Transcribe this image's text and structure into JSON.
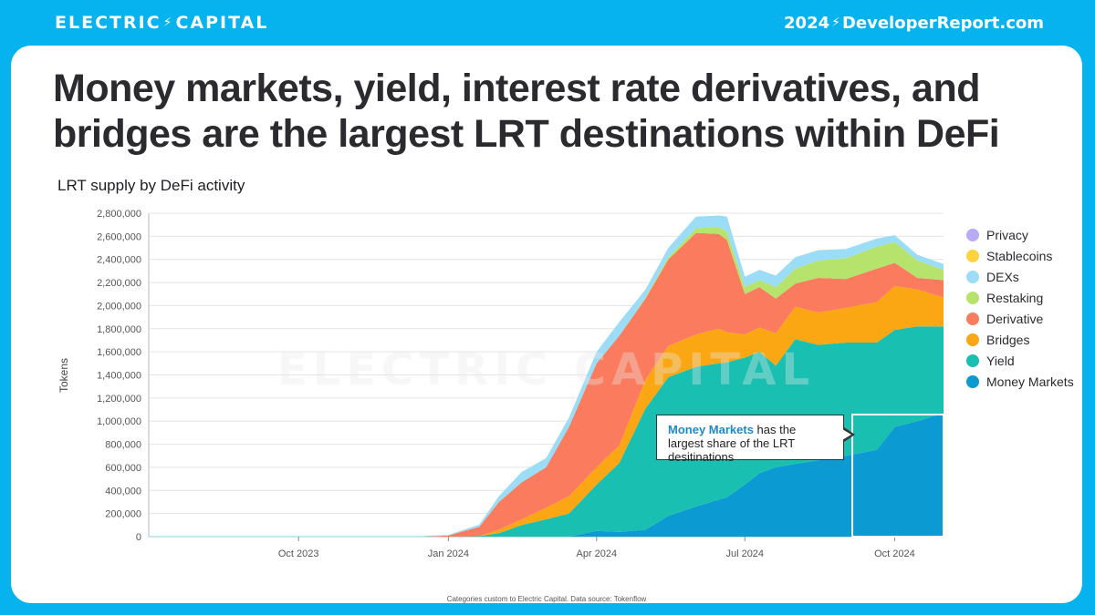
{
  "header": {
    "brand": "ELECTRIC CAPITAL",
    "brand_left": "ELECTRIC",
    "brand_right": "CAPITAL",
    "site_year": "2024",
    "site_url": "DeveloperReport.com"
  },
  "card": {
    "title": "Money markets, yield, interest rate derivatives, and bridges are the largest LRT destinations within DeFi",
    "subtitle": "LRT supply by DeFi activity",
    "source": "Categories custom to Electric Capital. Data source: Tokenflow",
    "callout_highlight": "Money Markets",
    "callout_text": " has the largest share of the LRT desitinations"
  },
  "chart_data": {
    "type": "area",
    "stacked": true,
    "ylabel": "Tokens",
    "xlabel": "",
    "ylim": [
      0,
      2800000
    ],
    "yticks": [
      0,
      200000,
      400000,
      600000,
      800000,
      1000000,
      1200000,
      1400000,
      1600000,
      1800000,
      2000000,
      2200000,
      2400000,
      2600000,
      2800000
    ],
    "ytick_labels": [
      "0",
      "200,000",
      "400,000",
      "600,000",
      "800,000",
      "1,000,000",
      "1,200,000",
      "1,400,000",
      "1,600,000",
      "1,800,000",
      "2,000,000",
      "2,200,000",
      "2,400,000",
      "2,600,000",
      "2,800,000"
    ],
    "xlim": [
      "2023-07-01",
      "2024-10-31"
    ],
    "xticks": [
      "2023-10-01",
      "2024-01-01",
      "2024-04-01",
      "2024-07-01",
      "2024-10-01"
    ],
    "xtick_labels": [
      "Oct 2023",
      "Jan 2024",
      "Apr 2024",
      "Jul 2024",
      "Oct 2024"
    ],
    "grid": true,
    "legend_position": "right",
    "watermark": "ELECTRIC CAPITAL",
    "x": [
      "2023-07-01",
      "2023-12-15",
      "2024-01-01",
      "2024-01-20",
      "2024-02-01",
      "2024-02-15",
      "2024-03-01",
      "2024-03-15",
      "2024-04-01",
      "2024-04-15",
      "2024-05-01",
      "2024-05-15",
      "2024-06-01",
      "2024-06-15",
      "2024-06-20",
      "2024-07-01",
      "2024-07-10",
      "2024-07-20",
      "2024-08-01",
      "2024-08-15",
      "2024-09-01",
      "2024-09-20",
      "2024-10-01",
      "2024-10-15",
      "2024-10-31"
    ],
    "series": [
      {
        "name": "Money Markets",
        "color": "#0b9ad1",
        "values": [
          0,
          0,
          0,
          0,
          0,
          0,
          0,
          0,
          50000,
          40000,
          60000,
          180000,
          260000,
          320000,
          340000,
          450000,
          550000,
          600000,
          630000,
          660000,
          700000,
          750000,
          950000,
          1000000,
          1070000
        ]
      },
      {
        "name": "Yield",
        "color": "#19bfb0",
        "values": [
          0,
          0,
          0,
          5000,
          30000,
          100000,
          150000,
          200000,
          400000,
          600000,
          1050000,
          1200000,
          1210000,
          1180000,
          1170000,
          1100000,
          1050000,
          880000,
          1080000,
          1000000,
          980000,
          930000,
          840000,
          820000,
          750000
        ]
      },
      {
        "name": "Bridges",
        "color": "#fba714",
        "values": [
          0,
          0,
          0,
          0,
          30000,
          50000,
          100000,
          150000,
          150000,
          150000,
          250000,
          270000,
          280000,
          300000,
          260000,
          200000,
          210000,
          280000,
          280000,
          280000,
          300000,
          350000,
          380000,
          320000,
          250000
        ]
      },
      {
        "name": "Derivative",
        "color": "#fb7b5e",
        "values": [
          0,
          0,
          10000,
          80000,
          240000,
          320000,
          350000,
          600000,
          900000,
          950000,
          700000,
          750000,
          880000,
          820000,
          800000,
          350000,
          350000,
          300000,
          200000,
          300000,
          250000,
          290000,
          200000,
          100000,
          150000
        ]
      },
      {
        "name": "Restaking",
        "color": "#b6e36c",
        "values": [
          0,
          0,
          0,
          0,
          0,
          0,
          0,
          0,
          0,
          0,
          10000,
          20000,
          40000,
          60000,
          70000,
          60000,
          60000,
          100000,
          130000,
          150000,
          180000,
          190000,
          180000,
          150000,
          90000
        ]
      },
      {
        "name": "DEXs",
        "color": "#9bdcf7",
        "values": [
          5000,
          5000,
          5000,
          20000,
          50000,
          90000,
          80000,
          80000,
          100000,
          120000,
          70000,
          80000,
          100000,
          100000,
          130000,
          90000,
          90000,
          100000,
          100000,
          90000,
          80000,
          70000,
          60000,
          50000,
          50000
        ]
      },
      {
        "name": "Stablecoins",
        "color": "#ffd43b",
        "values": [
          0,
          0,
          0,
          0,
          0,
          0,
          0,
          0,
          0,
          0,
          0,
          0,
          0,
          0,
          0,
          0,
          0,
          0,
          0,
          0,
          0,
          0,
          0,
          0,
          0
        ]
      },
      {
        "name": "Privacy",
        "color": "#b9aaf6",
        "values": [
          0,
          0,
          0,
          0,
          0,
          0,
          0,
          0,
          0,
          0,
          0,
          0,
          0,
          0,
          0,
          0,
          0,
          0,
          0,
          0,
          0,
          0,
          0,
          0,
          0
        ]
      }
    ]
  }
}
